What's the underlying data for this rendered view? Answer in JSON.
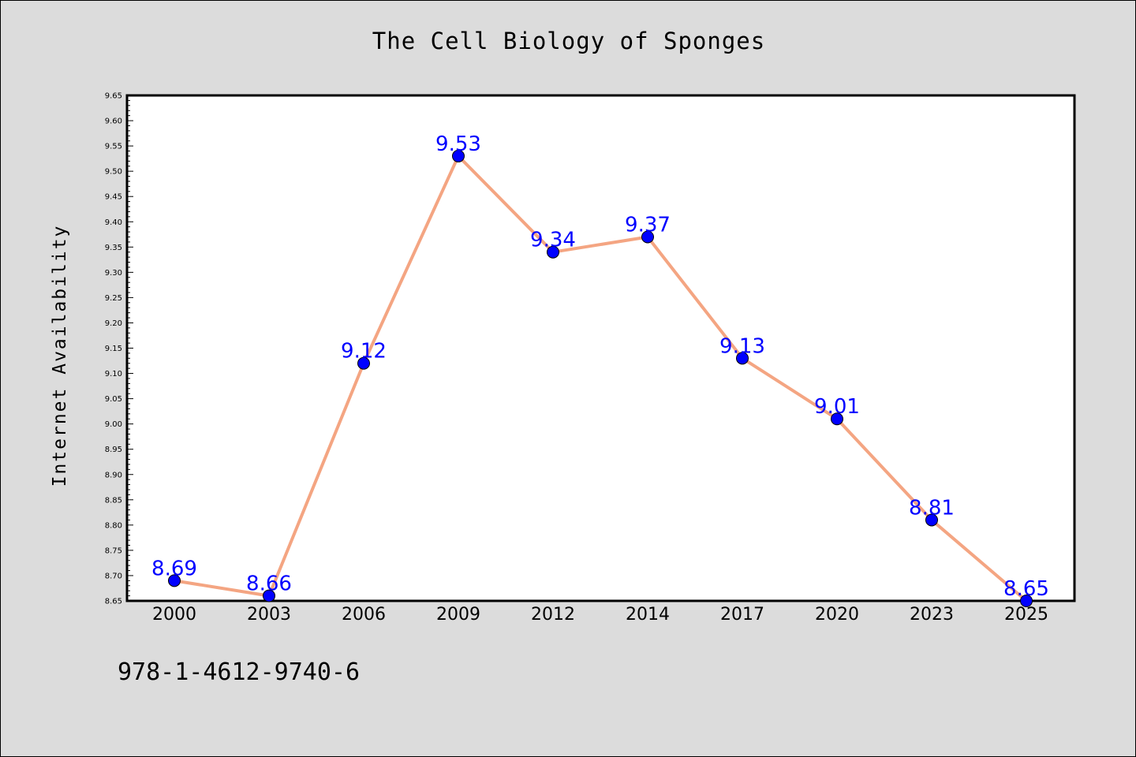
{
  "chart_data": {
    "type": "line",
    "title": "The Cell Biology of Sponges",
    "xlabel": "",
    "ylabel": "Internet Availability",
    "categories": [
      "2000",
      "2003",
      "2006",
      "2009",
      "2012",
      "2014",
      "2017",
      "2020",
      "2023",
      "2025"
    ],
    "series": [
      {
        "values": [
          8.69,
          8.66,
          9.12,
          9.53,
          9.34,
          9.37,
          9.13,
          9.01,
          8.81,
          8.65
        ],
        "labels": [
          "8.69",
          "8.66",
          "9.12",
          "9.53",
          "9.34",
          "9.37",
          "9.13",
          "9.01",
          "8.81",
          "8.65"
        ],
        "line_color": "#f4a582",
        "marker_color": "#0000ff",
        "label_color": "#0000ff"
      }
    ],
    "ylim": [
      8.65,
      9.65
    ],
    "yticks": [
      "8.65",
      "8.70",
      "8.75",
      "8.80",
      "8.85",
      "8.90",
      "8.95",
      "9.00",
      "9.05",
      "9.10",
      "9.15",
      "9.20",
      "9.25",
      "9.30",
      "9.35",
      "9.40",
      "9.45",
      "9.50",
      "9.55",
      "9.60",
      "9.65"
    ],
    "grid": false,
    "legend": "none",
    "colors": {
      "figure_background": "#dcdcdc",
      "plot_background": "#ffffff"
    }
  },
  "annotation": {
    "text": "978-1-4612-9740-6"
  }
}
